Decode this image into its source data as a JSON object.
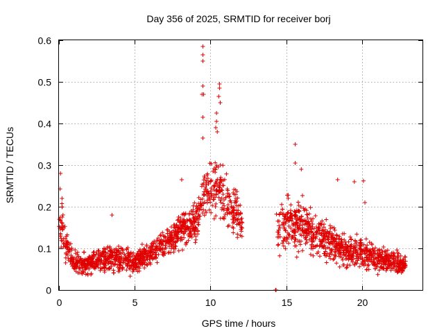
{
  "chart_data": {
    "type": "scatter",
    "title": "Day 356 of 2025, SRMTID for receiver borj",
    "xlabel": "GPS time / hours",
    "ylabel": "SRMTID / TECUs",
    "xlim": [
      0,
      24
    ],
    "ylim": [
      0,
      0.6
    ],
    "xticks": [
      0,
      5,
      10,
      15,
      20
    ],
    "yticks": [
      0,
      0.1,
      0.2,
      0.3,
      0.4,
      0.5,
      0.6
    ],
    "xtick_labels": [
      "0",
      "5",
      "10",
      "15",
      "20"
    ],
    "ytick_labels": [
      "0",
      "0.1",
      "0.2",
      "0.3",
      "0.4",
      "0.5",
      "0.6"
    ],
    "grid": true,
    "marker": "+",
    "series": [
      {
        "name": "SRMTID",
        "color": "#e00000",
        "envelope": [
          {
            "x": 0.0,
            "low": 0.08,
            "high": 0.28
          },
          {
            "x": 0.3,
            "low": 0.06,
            "high": 0.22
          },
          {
            "x": 0.6,
            "low": 0.05,
            "high": 0.15
          },
          {
            "x": 1.0,
            "low": 0.03,
            "high": 0.1
          },
          {
            "x": 2.0,
            "low": 0.03,
            "high": 0.1
          },
          {
            "x": 3.0,
            "low": 0.03,
            "high": 0.12
          },
          {
            "x": 4.0,
            "low": 0.03,
            "high": 0.12
          },
          {
            "x": 5.0,
            "low": 0.03,
            "high": 0.11
          },
          {
            "x": 6.0,
            "low": 0.05,
            "high": 0.13
          },
          {
            "x": 7.0,
            "low": 0.07,
            "high": 0.15
          },
          {
            "x": 8.0,
            "low": 0.09,
            "high": 0.2
          },
          {
            "x": 9.0,
            "low": 0.1,
            "high": 0.22
          },
          {
            "x": 9.5,
            "low": 0.13,
            "high": 0.3
          },
          {
            "x": 10.0,
            "low": 0.15,
            "high": 0.34
          },
          {
            "x": 10.5,
            "low": 0.15,
            "high": 0.34
          },
          {
            "x": 11.0,
            "low": 0.13,
            "high": 0.3
          },
          {
            "x": 11.5,
            "low": 0.11,
            "high": 0.27
          },
          {
            "x": 12.0,
            "low": 0.11,
            "high": 0.24
          },
          {
            "x": 14.4,
            "low": 0.06,
            "high": 0.2
          },
          {
            "x": 15.0,
            "low": 0.07,
            "high": 0.25
          },
          {
            "x": 16.0,
            "low": 0.07,
            "high": 0.24
          },
          {
            "x": 17.0,
            "low": 0.06,
            "high": 0.2
          },
          {
            "x": 18.0,
            "low": 0.05,
            "high": 0.18
          },
          {
            "x": 19.0,
            "low": 0.04,
            "high": 0.15
          },
          {
            "x": 20.0,
            "low": 0.03,
            "high": 0.14
          },
          {
            "x": 21.0,
            "low": 0.03,
            "high": 0.12
          },
          {
            "x": 22.0,
            "low": 0.03,
            "high": 0.11
          },
          {
            "x": 22.9,
            "low": 0.03,
            "high": 0.09
          }
        ],
        "outliers": [
          {
            "x": 0.1,
            "y": 0.28
          },
          {
            "x": 0.2,
            "y": 0.22
          },
          {
            "x": 3.5,
            "y": 0.18
          },
          {
            "x": 8.1,
            "y": 0.265
          },
          {
            "x": 9.5,
            "y": 0.585
          },
          {
            "x": 9.5,
            "y": 0.565
          },
          {
            "x": 9.5,
            "y": 0.55
          },
          {
            "x": 9.5,
            "y": 0.49
          },
          {
            "x": 9.45,
            "y": 0.47
          },
          {
            "x": 9.55,
            "y": 0.47
          },
          {
            "x": 9.5,
            "y": 0.415
          },
          {
            "x": 9.5,
            "y": 0.365
          },
          {
            "x": 10.4,
            "y": 0.425
          },
          {
            "x": 10.4,
            "y": 0.405
          },
          {
            "x": 10.35,
            "y": 0.39
          },
          {
            "x": 10.45,
            "y": 0.38
          },
          {
            "x": 10.6,
            "y": 0.495
          },
          {
            "x": 10.6,
            "y": 0.485
          },
          {
            "x": 10.55,
            "y": 0.465
          },
          {
            "x": 10.65,
            "y": 0.45
          },
          {
            "x": 15.6,
            "y": 0.35
          },
          {
            "x": 15.6,
            "y": 0.305
          },
          {
            "x": 16.0,
            "y": 0.29
          },
          {
            "x": 18.4,
            "y": 0.265
          },
          {
            "x": 19.5,
            "y": 0.26
          },
          {
            "x": 20.1,
            "y": 0.262
          },
          {
            "x": 20.2,
            "y": 0.21
          }
        ],
        "zero_points": [
          {
            "x": 14.3,
            "y": 0.0
          }
        ]
      }
    ]
  }
}
